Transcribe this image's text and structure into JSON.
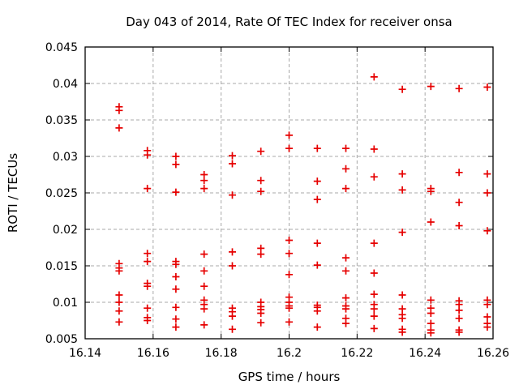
{
  "window": {
    "background": "#ffffff"
  },
  "chart_data": {
    "type": "scatter",
    "title": "Day 043 of 2014, Rate Of TEC Index for receiver onsa",
    "xlabel": "GPS time / hours",
    "ylabel": "ROTI / TECUs",
    "xlim": [
      16.14,
      16.26
    ],
    "ylim": [
      0.005,
      0.045
    ],
    "xticks": [
      {
        "value": 16.14,
        "label": "16.14"
      },
      {
        "value": 16.16,
        "label": "16.16"
      },
      {
        "value": 16.18,
        "label": "16.18"
      },
      {
        "value": 16.2,
        "label": "16.2"
      },
      {
        "value": 16.22,
        "label": "16.22"
      },
      {
        "value": 16.24,
        "label": "16.24"
      },
      {
        "value": 16.26,
        "label": "16.26"
      }
    ],
    "yticks": [
      {
        "value": 0.005,
        "label": "0.005"
      },
      {
        "value": 0.01,
        "label": "0.01"
      },
      {
        "value": 0.015,
        "label": "0.015"
      },
      {
        "value": 0.02,
        "label": "0.02"
      },
      {
        "value": 0.025,
        "label": "0.025"
      },
      {
        "value": 0.03,
        "label": "0.03"
      },
      {
        "value": 0.035,
        "label": "0.035"
      },
      {
        "value": 0.04,
        "label": "0.04"
      },
      {
        "value": 0.045,
        "label": "0.045"
      }
    ],
    "grid": "dashed",
    "legend": "none",
    "marker": {
      "shape": "plus",
      "color": "#e60000",
      "size": 9
    },
    "axis_color": "#000000",
    "grid_color": "#a8a8a8",
    "series": [
      {
        "name": "ROTI",
        "points": [
          {
            "t": 16.15,
            "values": [
              0.0368,
              0.0363,
              0.0339,
              0.0153,
              0.0147,
              0.0143,
              0.011,
              0.01,
              0.0088,
              0.0073
            ]
          },
          {
            "t": 16.1583,
            "values": [
              0.0308,
              0.0302,
              0.0256,
              0.0167,
              0.0156,
              0.0126,
              0.0122,
              0.0092,
              0.0079,
              0.0075
            ]
          },
          {
            "t": 16.1667,
            "values": [
              0.03,
              0.0289,
              0.0251,
              0.0156,
              0.0152,
              0.0135,
              0.0118,
              0.0093,
              0.0077,
              0.0066
            ]
          },
          {
            "t": 16.175,
            "values": [
              0.0275,
              0.0267,
              0.0256,
              0.0166,
              0.0143,
              0.0122,
              0.0103,
              0.0097,
              0.0091,
              0.0069
            ]
          },
          {
            "t": 16.1833,
            "values": [
              0.0301,
              0.029,
              0.0247,
              0.0169,
              0.015,
              0.0092,
              0.0087,
              0.0081,
              0.0063
            ]
          },
          {
            "t": 16.1917,
            "values": [
              0.0307,
              0.0267,
              0.0252,
              0.0174,
              0.0166,
              0.01,
              0.0094,
              0.009,
              0.0085,
              0.0072
            ]
          },
          {
            "t": 16.2,
            "values": [
              0.0329,
              0.0311,
              0.0185,
              0.0167,
              0.0138,
              0.0107,
              0.01,
              0.0095,
              0.0092,
              0.0073
            ]
          },
          {
            "t": 16.2083,
            "values": [
              0.0311,
              0.0266,
              0.0241,
              0.0181,
              0.0151,
              0.0096,
              0.0093,
              0.0088,
              0.0066
            ]
          },
          {
            "t": 16.2167,
            "values": [
              0.0311,
              0.0283,
              0.0256,
              0.0161,
              0.0143,
              0.0106,
              0.0095,
              0.0091,
              0.0078,
              0.0071
            ]
          },
          {
            "t": 16.225,
            "values": [
              0.0409,
              0.031,
              0.0272,
              0.0181,
              0.014,
              0.0111,
              0.0097,
              0.0091,
              0.0081,
              0.0064
            ]
          },
          {
            "t": 16.2333,
            "values": [
              0.0392,
              0.0276,
              0.0254,
              0.0196,
              0.011,
              0.0091,
              0.0083,
              0.0078,
              0.0063,
              0.0059
            ]
          },
          {
            "t": 16.2417,
            "values": [
              0.0396,
              0.0256,
              0.0252,
              0.021,
              0.0103,
              0.0092,
              0.0085,
              0.0071,
              0.0062,
              0.0058
            ]
          },
          {
            "t": 16.25,
            "values": [
              0.0393,
              0.0278,
              0.0237,
              0.0205,
              0.0102,
              0.0097,
              0.0089,
              0.0078,
              0.0062,
              0.0059
            ]
          },
          {
            "t": 16.2583,
            "values": [
              0.0395,
              0.0276,
              0.025,
              0.0198,
              0.0103,
              0.0097,
              0.008,
              0.0071,
              0.0066
            ]
          }
        ]
      }
    ]
  }
}
